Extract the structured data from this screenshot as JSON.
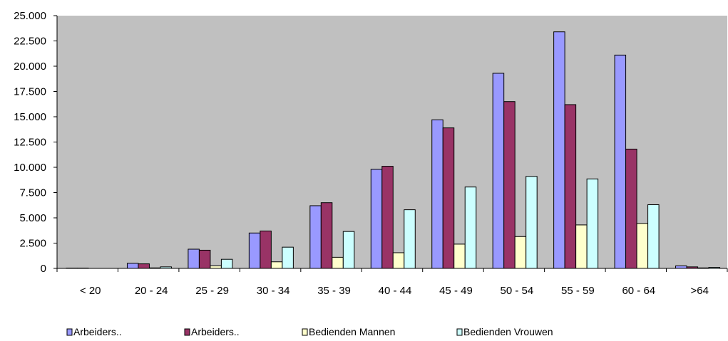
{
  "chart_data": {
    "type": "bar",
    "categories": [
      "< 20",
      "20 - 24",
      "25 - 29",
      "30 - 34",
      "35 - 39",
      "40 - 44",
      "45 - 49",
      "50 - 54",
      "55 - 59",
      "60 - 64",
      ">64"
    ],
    "series": [
      {
        "name": "Arbeiders..",
        "color": "#9999FF",
        "values": [
          30,
          500,
          1900,
          3500,
          6200,
          9800,
          14700,
          19300,
          23400,
          21100,
          250
        ]
      },
      {
        "name": "Arbeiders..",
        "color": "#993366",
        "values": [
          30,
          450,
          1800,
          3700,
          6500,
          10100,
          13900,
          16500,
          16200,
          11800,
          150
        ]
      },
      {
        "name": "Bedienden Mannen",
        "color": "#FFFFCC",
        "values": [
          0,
          50,
          250,
          650,
          1100,
          1550,
          2400,
          3150,
          4300,
          4450,
          50
        ]
      },
      {
        "name": "Bedienden Vrouwen",
        "color": "#CCFFFF",
        "values": [
          0,
          150,
          900,
          2100,
          3650,
          5800,
          8050,
          9100,
          8850,
          6300,
          100
        ]
      }
    ],
    "yticks": [
      "0",
      "2.500",
      "5.000",
      "7.500",
      "10.000",
      "12.500",
      "15.000",
      "17.500",
      "20.000",
      "22.500",
      "25.000"
    ],
    "ylim": [
      0,
      25000
    ],
    "plot_background": "#C0C0C0",
    "legend_position": "bottom",
    "grid": false
  }
}
